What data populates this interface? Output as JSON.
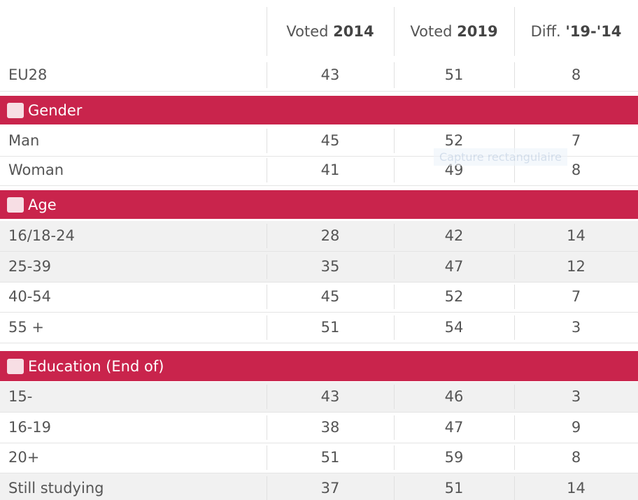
{
  "header": {
    "columns": [
      {
        "prefix": "Voted ",
        "bold": "2014"
      },
      {
        "prefix": "Voted ",
        "bold": "2019"
      },
      {
        "prefix": "Diff. ",
        "bold": "'19-'14"
      }
    ]
  },
  "total": {
    "label": "EU28",
    "values": [
      43,
      51,
      8
    ]
  },
  "sections": [
    {
      "title": "Gender",
      "rows": [
        {
          "label": "Man",
          "values": [
            45,
            52,
            7
          ]
        },
        {
          "label": "Woman",
          "values": [
            41,
            49,
            8
          ]
        }
      ]
    },
    {
      "title": "Age",
      "rows": [
        {
          "label": "16/18-24",
          "values": [
            28,
            42,
            14
          ]
        },
        {
          "label": "25-39",
          "values": [
            35,
            47,
            12
          ]
        },
        {
          "label": "40-54",
          "values": [
            45,
            52,
            7
          ]
        },
        {
          "label": "55 +",
          "values": [
            51,
            54,
            3
          ]
        }
      ]
    },
    {
      "title": "Education (End of)",
      "rows": [
        {
          "label": "15-",
          "values": [
            43,
            46,
            3
          ]
        },
        {
          "label": "16-19",
          "values": [
            38,
            47,
            9
          ]
        },
        {
          "label": "20+",
          "values": [
            51,
            59,
            8
          ]
        },
        {
          "label": "Still studying",
          "values": [
            37,
            51,
            14
          ]
        }
      ]
    }
  ],
  "overlay": "Capture rectangulaire"
}
